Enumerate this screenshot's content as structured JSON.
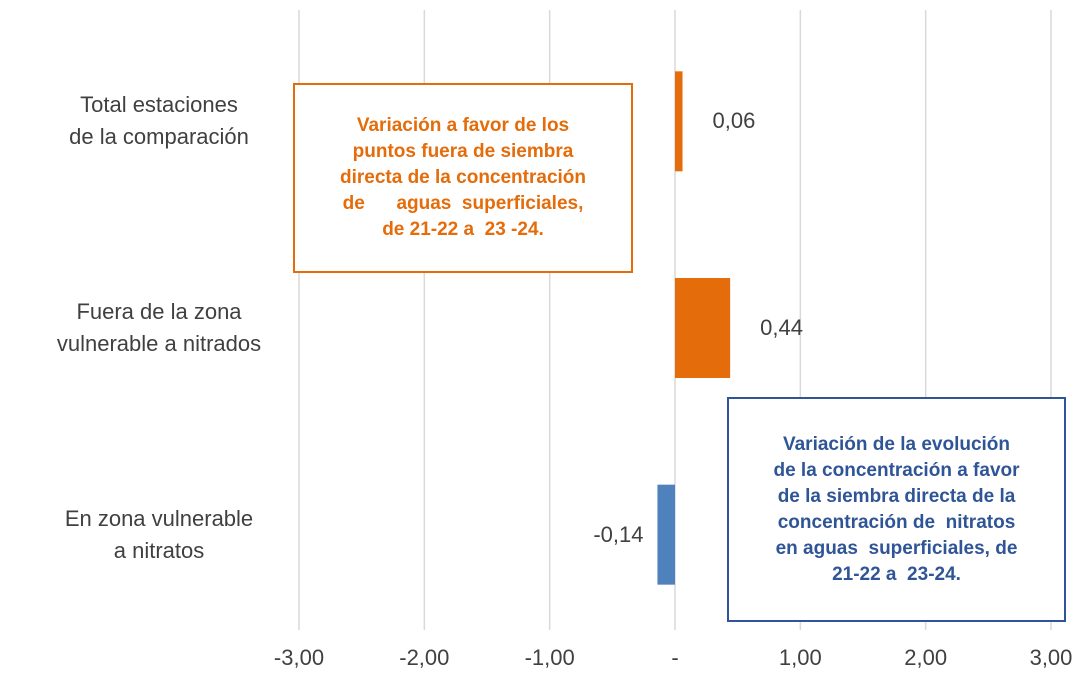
{
  "chart_data": {
    "type": "barh",
    "categories": [
      "Total estaciones\nde la comparación",
      "Fuera de la zona\nvulnerable a nitrados",
      "En zona vulnerable\na nitratos"
    ],
    "values": [
      0.06,
      0.44,
      -0.14
    ],
    "value_labels": [
      "0,06",
      "0,44",
      "-0,14"
    ],
    "colors": [
      "#e46c0a",
      "#e46c0a",
      "#4f81bd"
    ],
    "xlim": [
      -3,
      3
    ],
    "xticks": [
      {
        "value": -3,
        "label": "-3,00"
      },
      {
        "value": -2,
        "label": "-2,00"
      },
      {
        "value": -1,
        "label": "-1,00"
      },
      {
        "value": 0,
        "label": "-"
      },
      {
        "value": 1,
        "label": "1,00"
      },
      {
        "value": 2,
        "label": "2,00"
      },
      {
        "value": 3,
        "label": "3,00"
      }
    ],
    "grid": true,
    "annotations": [
      {
        "text": "Variación a favor de los\npuntos fuera de siembra\ndirecta de la concentración\nde      aguas  superficiales,\nde 21-22 a  23 -24.",
        "color": "#e46c0a"
      },
      {
        "text": "Variación de la evolución\nde la concentración a favor\nde la siembra directa de la\nconcentración de  nitratos\nen aguas  superficiales, de\n21-22 a  23-24.",
        "color": "#2f5597"
      }
    ]
  }
}
